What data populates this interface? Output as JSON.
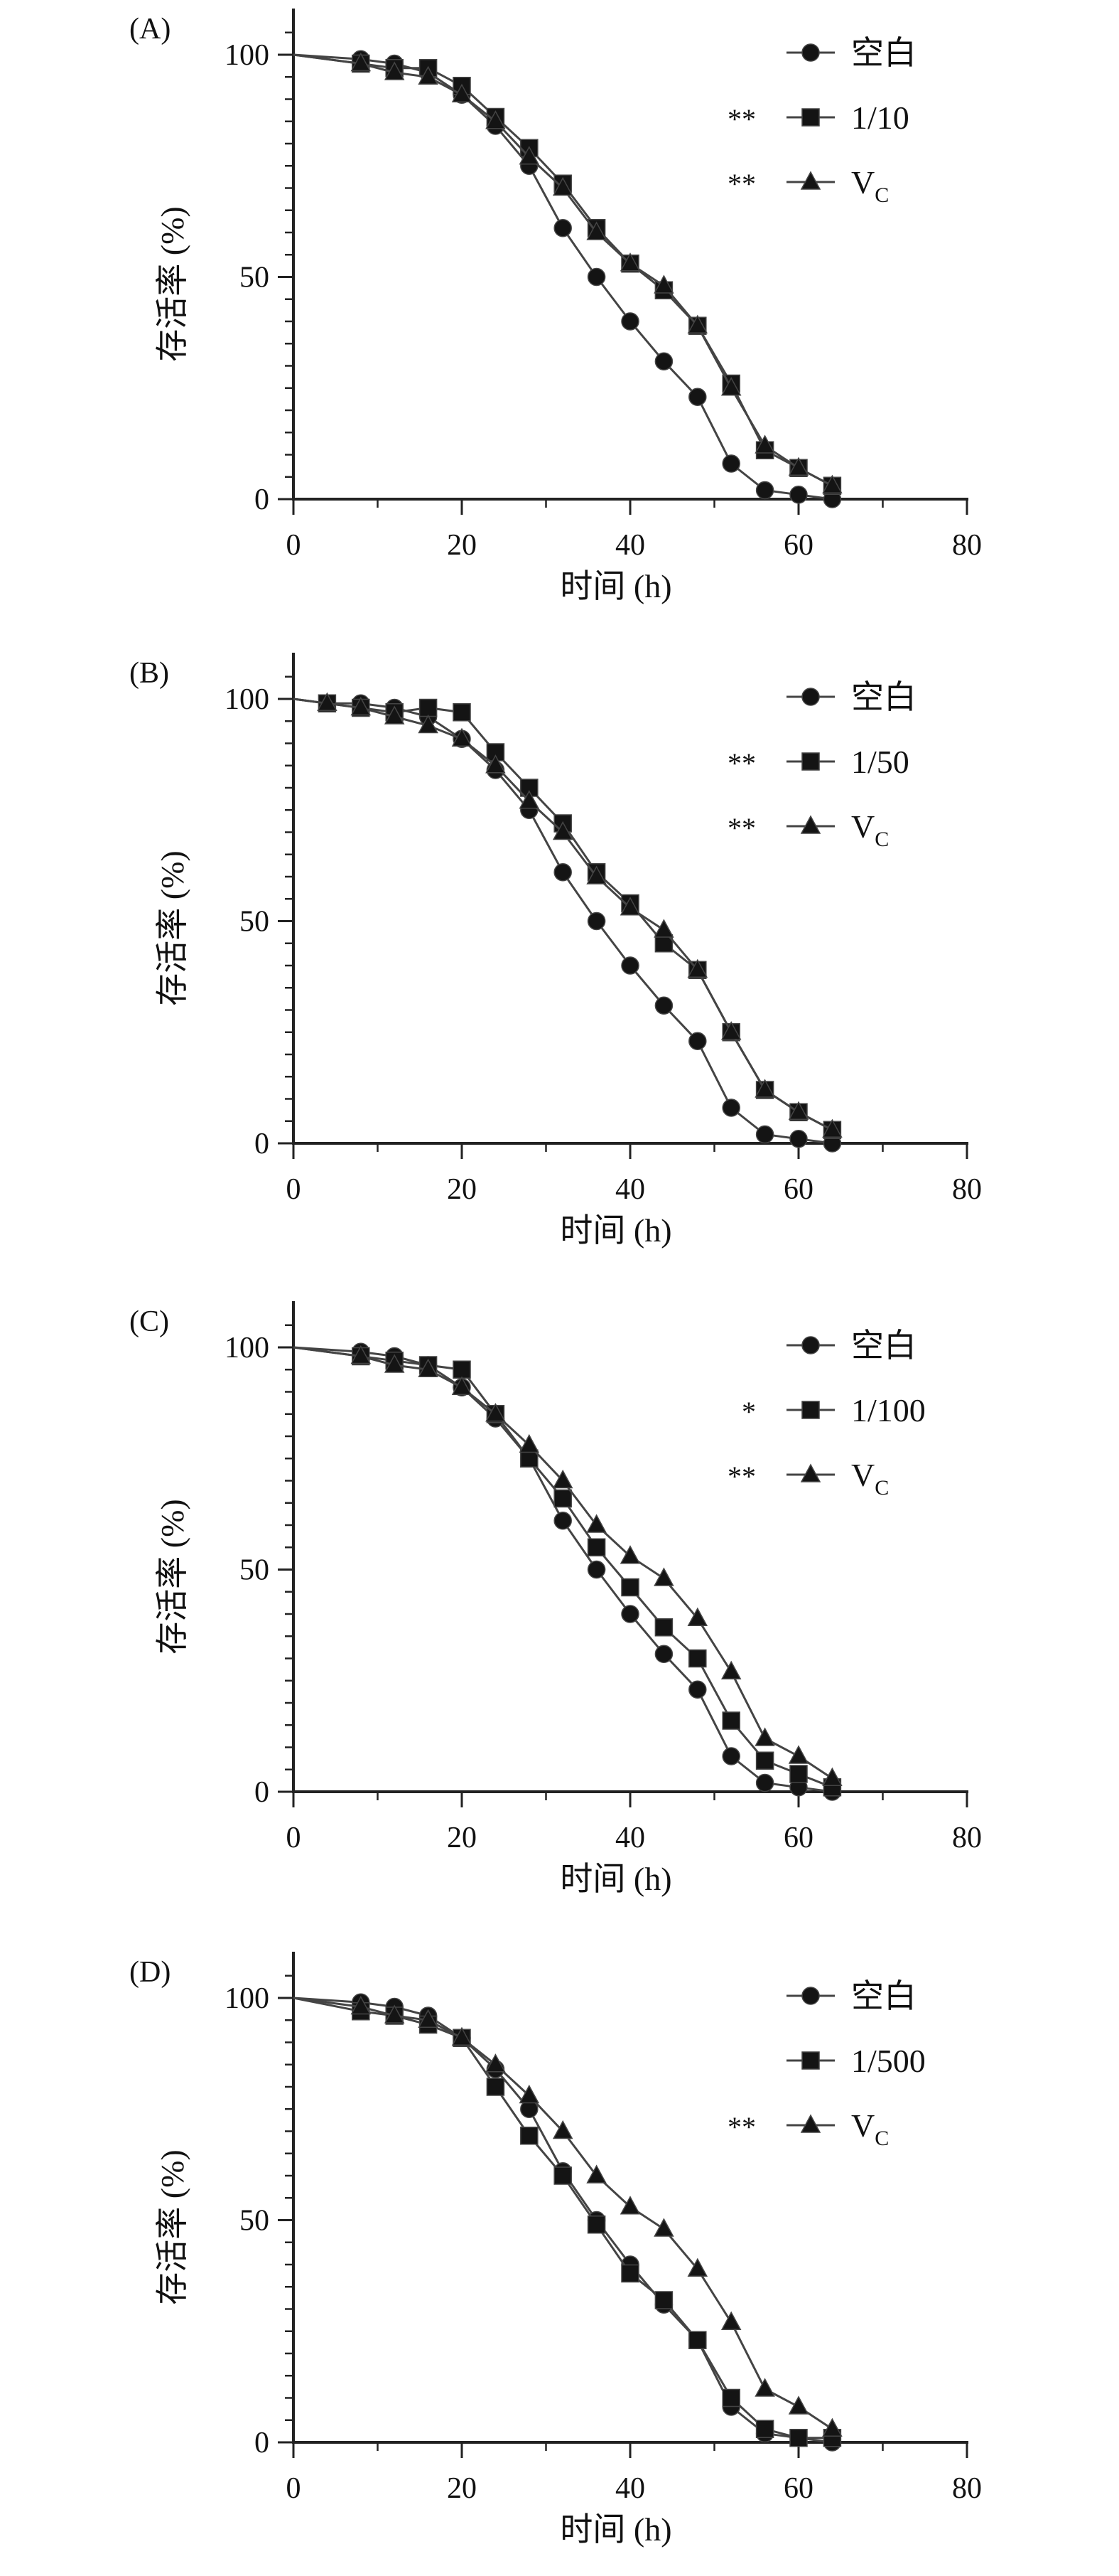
{
  "chart_data": [
    {
      "panel": "(A)",
      "type": "line",
      "xlabel": "时间 (h)",
      "ylabel": "存活率 (%)",
      "xlim": [
        0,
        80
      ],
      "ylim": [
        0,
        100
      ],
      "xticks": [
        0,
        20,
        40,
        60,
        80
      ],
      "yticks": [
        0,
        50,
        100
      ],
      "legend_position": "top-right",
      "series": [
        {
          "name": "空白",
          "marker": "circle",
          "significance": "",
          "x": [
            0,
            8,
            12,
            16,
            20,
            24,
            28,
            32,
            36,
            40,
            44,
            48,
            52,
            56,
            60,
            64
          ],
          "y": [
            100,
            99,
            98,
            96,
            91,
            84,
            75,
            61,
            50,
            40,
            31,
            23,
            8,
            2,
            1,
            0
          ]
        },
        {
          "name": "1/10",
          "marker": "square",
          "significance": "**",
          "x": [
            0,
            8,
            12,
            16,
            20,
            24,
            28,
            32,
            36,
            40,
            44,
            48,
            52,
            56,
            60,
            64
          ],
          "y": [
            100,
            98,
            97,
            97,
            93,
            86,
            79,
            71,
            61,
            53,
            47,
            39,
            26,
            11,
            7,
            3
          ]
        },
        {
          "name": "V",
          "name_subscript": "C",
          "marker": "triangle",
          "significance": "**",
          "x": [
            0,
            8,
            12,
            16,
            20,
            24,
            28,
            32,
            36,
            40,
            44,
            48,
            52,
            56,
            60,
            64
          ],
          "y": [
            100,
            98,
            96,
            95,
            91,
            85,
            77,
            70,
            60,
            53,
            48,
            39,
            25,
            12,
            7,
            3
          ]
        }
      ]
    },
    {
      "panel": "(B)",
      "type": "line",
      "xlabel": "时间 (h)",
      "ylabel": "存活率 (%)",
      "xlim": [
        0,
        80
      ],
      "ylim": [
        0,
        100
      ],
      "xticks": [
        0,
        20,
        40,
        60,
        80
      ],
      "yticks": [
        0,
        50,
        100
      ],
      "legend_position": "top-right",
      "series": [
        {
          "name": "空白",
          "marker": "circle",
          "significance": "",
          "x": [
            0,
            4,
            8,
            12,
            16,
            20,
            24,
            28,
            32,
            36,
            40,
            44,
            48,
            52,
            56,
            60,
            64
          ],
          "y": [
            100,
            99,
            99,
            98,
            96,
            91,
            84,
            75,
            61,
            50,
            40,
            31,
            23,
            8,
            2,
            1,
            0
          ]
        },
        {
          "name": "1/50",
          "marker": "square",
          "significance": "**",
          "x": [
            0,
            4,
            8,
            12,
            16,
            20,
            24,
            28,
            32,
            36,
            40,
            44,
            48,
            52,
            56,
            60,
            64
          ],
          "y": [
            100,
            99,
            98,
            97,
            98,
            97,
            88,
            80,
            72,
            61,
            54,
            45,
            39,
            25,
            12,
            7,
            3
          ]
        },
        {
          "name": "V",
          "name_subscript": "C",
          "marker": "triangle",
          "significance": "**",
          "x": [
            0,
            4,
            8,
            12,
            16,
            20,
            24,
            28,
            32,
            36,
            40,
            44,
            48,
            52,
            56,
            60,
            64
          ],
          "y": [
            100,
            99,
            98,
            96,
            94,
            91,
            85,
            77,
            70,
            60,
            53,
            48,
            39,
            25,
            12,
            7,
            3
          ]
        }
      ]
    },
    {
      "panel": "(C)",
      "type": "line",
      "xlabel": "时间 (h)",
      "ylabel": "存活率 (%)",
      "xlim": [
        0,
        80
      ],
      "ylim": [
        0,
        100
      ],
      "xticks": [
        0,
        20,
        40,
        60,
        80
      ],
      "yticks": [
        0,
        50,
        100
      ],
      "legend_position": "top-right",
      "series": [
        {
          "name": "空白",
          "marker": "circle",
          "significance": "",
          "x": [
            0,
            8,
            12,
            16,
            20,
            24,
            28,
            32,
            36,
            40,
            44,
            48,
            52,
            56,
            60,
            64
          ],
          "y": [
            100,
            99,
            98,
            96,
            91,
            84,
            75,
            61,
            50,
            40,
            31,
            23,
            8,
            2,
            1,
            0
          ]
        },
        {
          "name": "1/100",
          "marker": "square",
          "significance": "*",
          "x": [
            0,
            8,
            12,
            16,
            20,
            24,
            28,
            32,
            36,
            40,
            44,
            48,
            52,
            56,
            60,
            64
          ],
          "y": [
            100,
            98,
            97,
            96,
            95,
            85,
            75,
            66,
            55,
            46,
            37,
            30,
            16,
            7,
            4,
            1
          ]
        },
        {
          "name": "V",
          "name_subscript": "C",
          "marker": "triangle",
          "significance": "**",
          "x": [
            0,
            8,
            12,
            16,
            20,
            24,
            28,
            32,
            36,
            40,
            44,
            48,
            52,
            56,
            60,
            64
          ],
          "y": [
            100,
            98,
            96,
            95,
            91,
            85,
            78,
            70,
            60,
            53,
            48,
            39,
            27,
            12,
            8,
            3
          ]
        }
      ]
    },
    {
      "panel": "(D)",
      "type": "line",
      "xlabel": "时间 (h)",
      "ylabel": "存活率 (%)",
      "xlim": [
        0,
        80
      ],
      "ylim": [
        0,
        100
      ],
      "xticks": [
        0,
        20,
        40,
        60,
        80
      ],
      "yticks": [
        0,
        50,
        100
      ],
      "legend_position": "top-right",
      "series": [
        {
          "name": "空白",
          "marker": "circle",
          "significance": "",
          "x": [
            0,
            8,
            12,
            16,
            20,
            24,
            28,
            32,
            36,
            40,
            44,
            48,
            52,
            56,
            60,
            64
          ],
          "y": [
            100,
            99,
            98,
            96,
            91,
            84,
            75,
            61,
            50,
            40,
            31,
            23,
            8,
            2,
            1,
            0
          ]
        },
        {
          "name": "1/500",
          "marker": "square",
          "significance": "",
          "x": [
            0,
            8,
            12,
            16,
            20,
            24,
            28,
            32,
            36,
            40,
            44,
            48,
            52,
            56,
            60,
            64
          ],
          "y": [
            100,
            97,
            96,
            94,
            91,
            80,
            69,
            60,
            49,
            38,
            32,
            23,
            10,
            3,
            1,
            1
          ]
        },
        {
          "name": "V",
          "name_subscript": "C",
          "marker": "triangle",
          "significance": "**",
          "x": [
            0,
            8,
            12,
            16,
            20,
            24,
            28,
            32,
            36,
            40,
            44,
            48,
            52,
            56,
            60,
            64
          ],
          "y": [
            100,
            98,
            96,
            95,
            91,
            85,
            78,
            70,
            60,
            53,
            48,
            39,
            27,
            12,
            8,
            3
          ]
        }
      ]
    }
  ]
}
